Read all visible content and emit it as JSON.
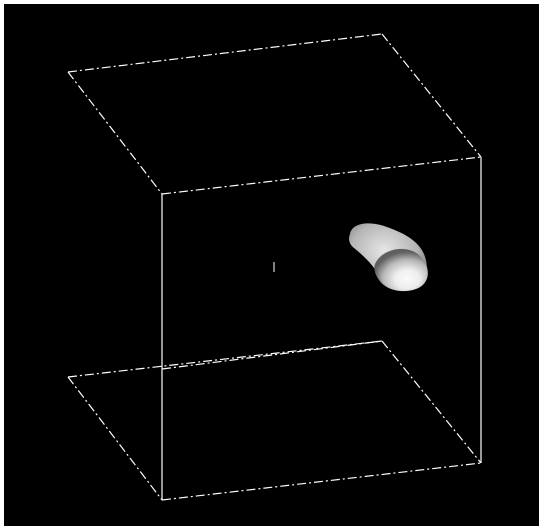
{
  "viewer": {
    "background_color": "#000000",
    "frame_color": "#ffffff",
    "bounding_box": {
      "style": "dashed-back-solid-front",
      "line_color": "#ffffff"
    },
    "object": {
      "type": "isosurface-blob",
      "shading": "grayscale"
    },
    "center_marker": {
      "type": "tick"
    }
  }
}
